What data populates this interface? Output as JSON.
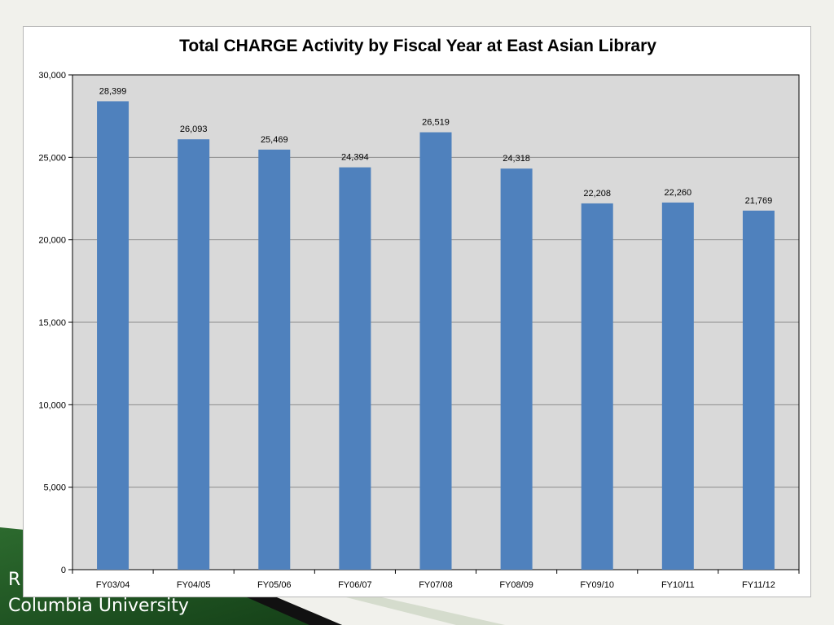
{
  "footer": {
    "line1": "R",
    "line2": "Columbia University"
  },
  "colors": {
    "bar": "#4f81bd",
    "plot_bg": "#d9d9d9",
    "gridline": "#8c8c8c",
    "footer_green": "#1f5a22"
  },
  "chart_data": {
    "type": "bar",
    "title": "Total CHARGE Activity by Fiscal Year at East Asian Library",
    "xlabel": "",
    "ylabel": "",
    "categories": [
      "FY03/04",
      "FY04/05",
      "FY05/06",
      "FY06/07",
      "FY07/08",
      "FY08/09",
      "FY09/10",
      "FY10/11",
      "FY11/12"
    ],
    "values": [
      28399,
      26093,
      25469,
      24394,
      26519,
      24318,
      22208,
      22260,
      21769
    ],
    "data_labels": [
      "28,399",
      "26,093",
      "25,469",
      "24,394",
      "26,519",
      "24,318",
      "22,208",
      "22,260",
      "21,769"
    ],
    "ylim": [
      0,
      30000
    ],
    "yticks": [
      0,
      5000,
      10000,
      15000,
      20000,
      25000,
      30000
    ],
    "ytick_labels": [
      "0",
      "5,000",
      "10,000",
      "15,000",
      "20,000",
      "25,000",
      "30,000"
    ],
    "grid": true,
    "legend": "none"
  }
}
